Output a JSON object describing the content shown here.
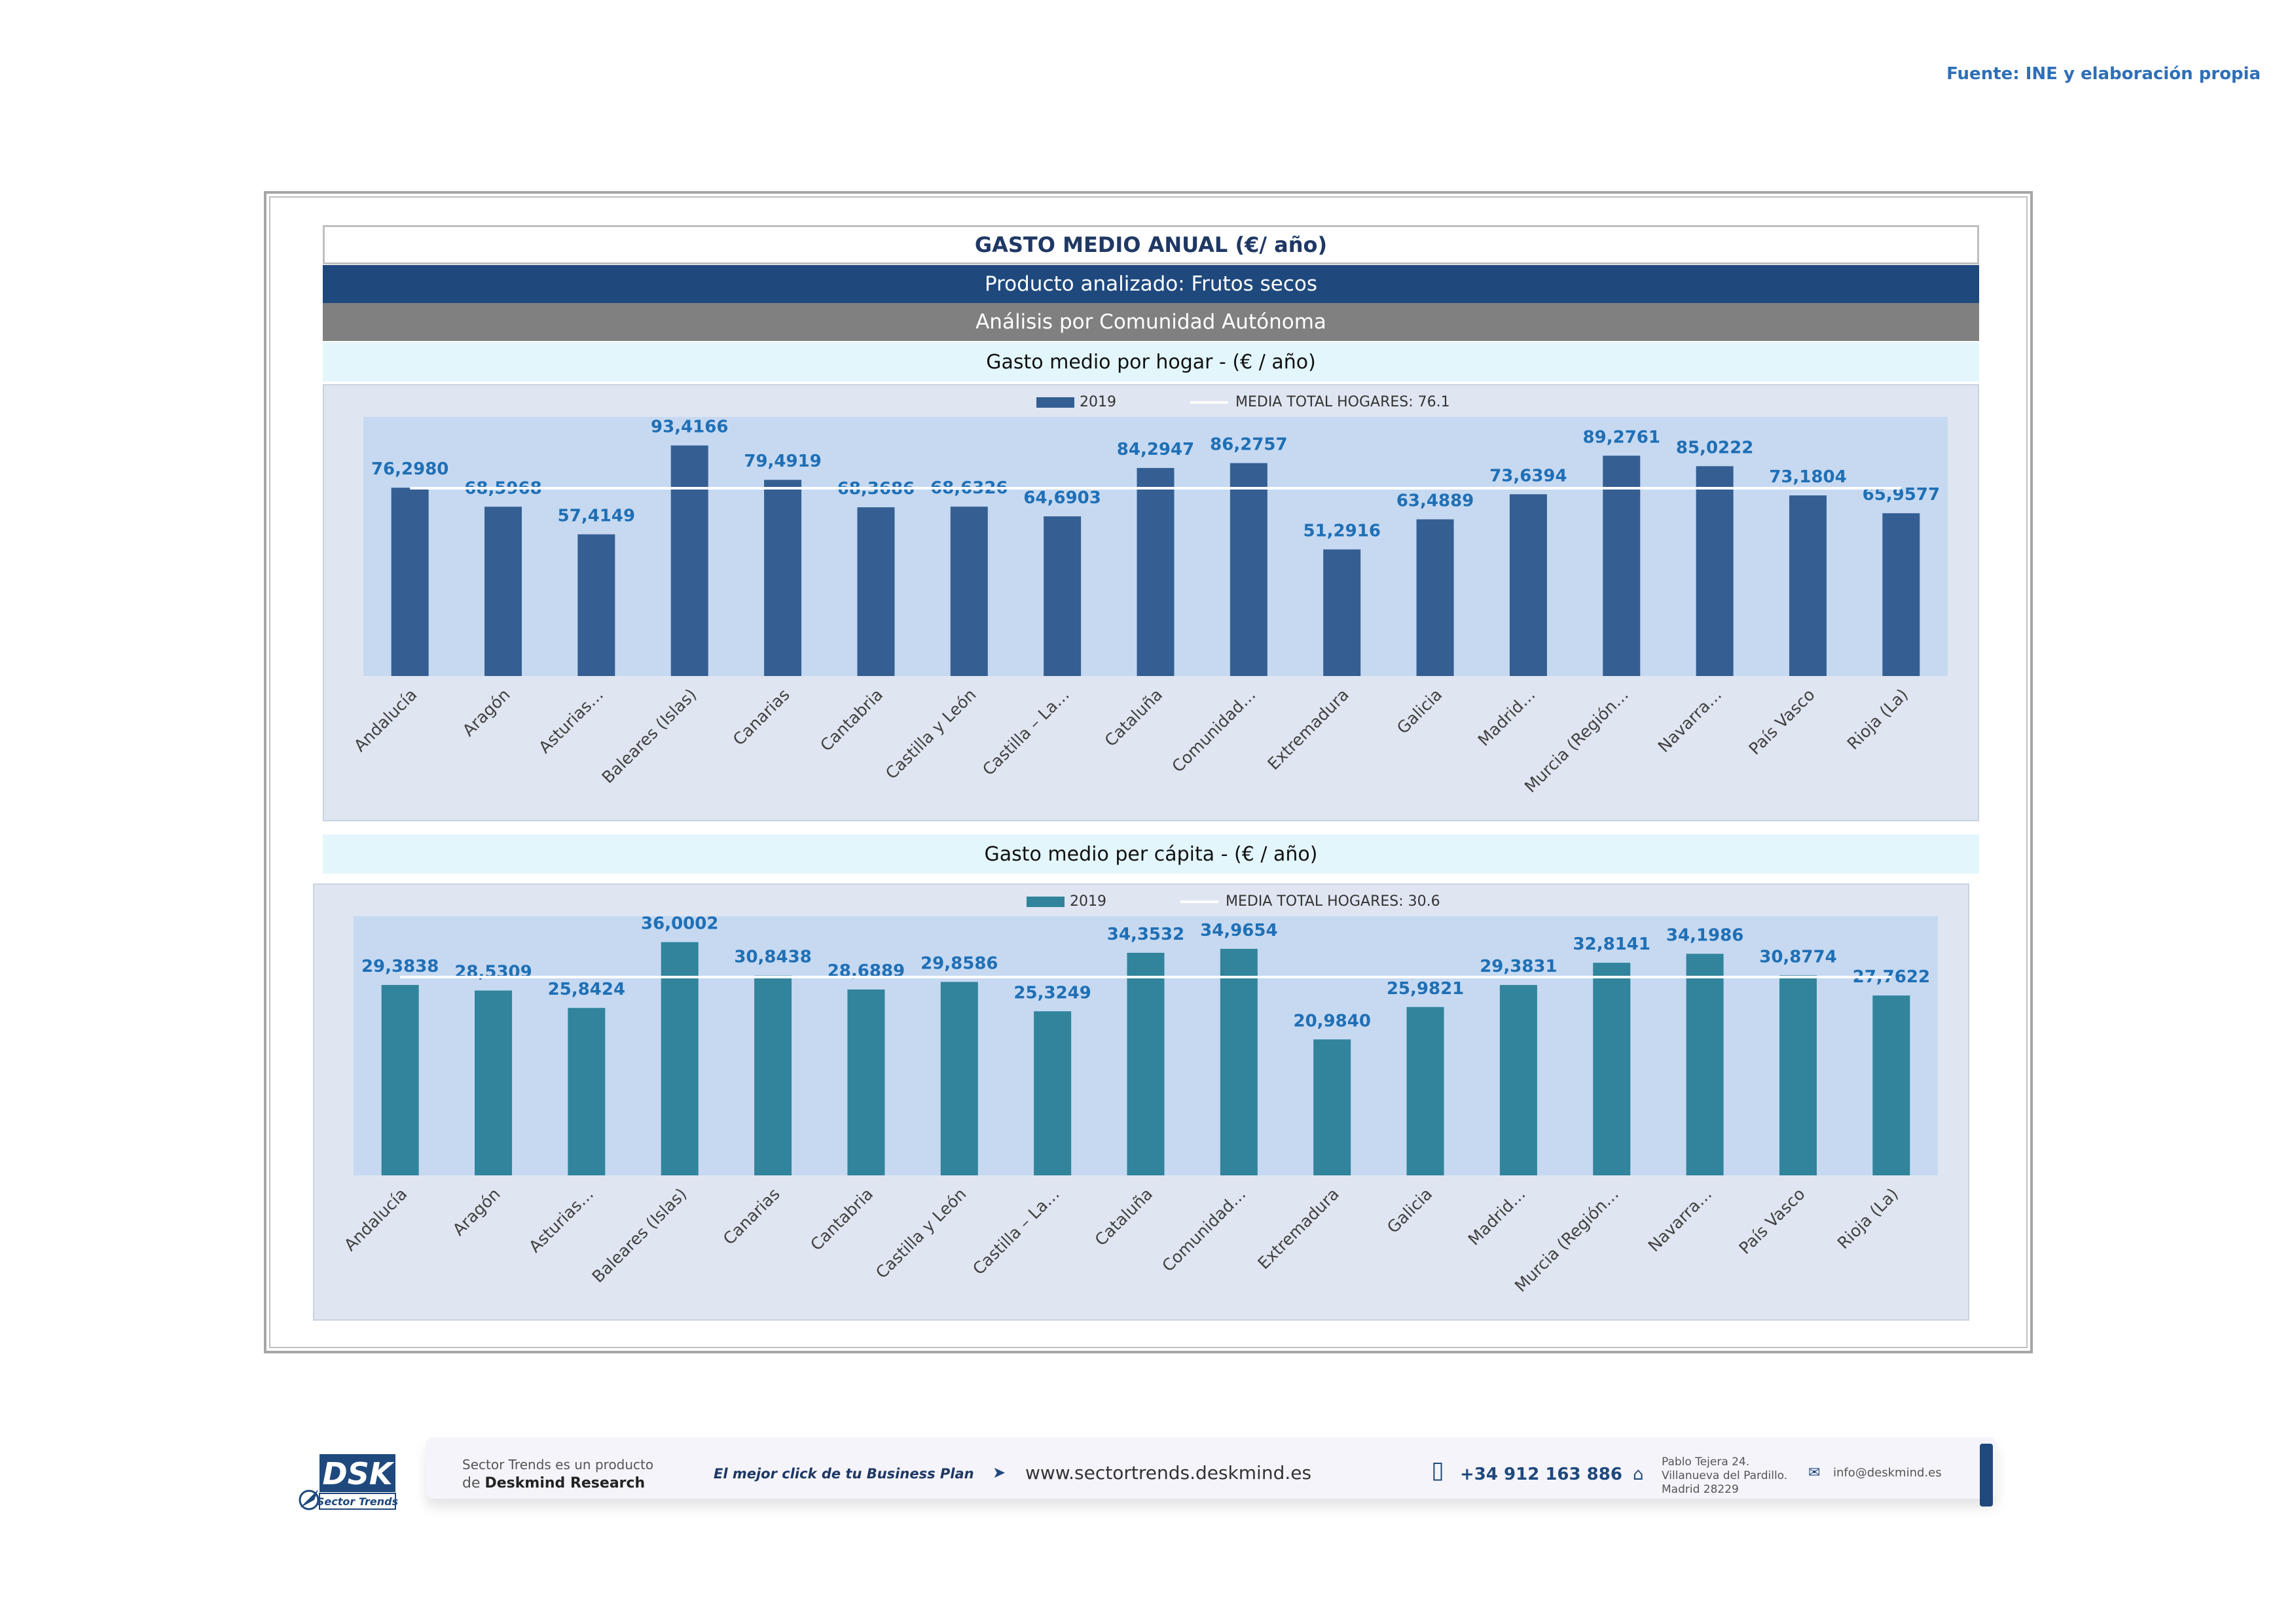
{
  "source": "Fuente: INE y elaboración propia",
  "header": {
    "title": "GASTO MEDIO ANUAL (€/ año)",
    "product": "Producto analizado: Frutos secos",
    "analysis": "Análisis por Comunidad Autónoma"
  },
  "colors": {
    "hogar_bar": "#355f93",
    "capita_bar": "#31849b",
    "plot_bg": "#c6d9f1",
    "panel_bg": "#dfe6f1",
    "label": "#1f6fb5",
    "mean_line": "#ffffff"
  },
  "chart_data": [
    {
      "type": "bar",
      "title": "Gasto medio por hogar -  (€ / año)",
      "categories": [
        "Andalucía",
        "Aragón",
        "Asturias…",
        "Baleares (Islas)",
        "Canarias",
        "Cantabria",
        "Castilla y León",
        "Castilla – La…",
        "Cataluña",
        "Comunidad…",
        "Extremadura",
        "Galicia",
        "Madrid…",
        "Murcia (Región…",
        "Navarra…",
        "País Vasco",
        "Rioja (La)"
      ],
      "series": [
        {
          "name": "2019",
          "values": [
            76.298,
            68.5968,
            57.4149,
            93.4166,
            79.4919,
            68.3686,
            68.6326,
            64.6903,
            84.2947,
            86.2757,
            51.2916,
            63.4889,
            73.6394,
            89.2761,
            85.0222,
            73.1804,
            65.9577
          ],
          "labels": [
            "76,2980",
            "68,5968",
            "57,4149",
            "93,4166",
            "79,4919",
            "68,3686",
            "68,6326",
            "64,6903",
            "84,2947",
            "86,2757",
            "51,2916",
            "63,4889",
            "73,6394",
            "89,2761",
            "85,0222",
            "73,1804",
            "65,9577"
          ]
        }
      ],
      "mean": {
        "label": "MEDIA TOTAL  HOGARES:",
        "value": 76.1,
        "display": "76.1"
      },
      "ylim": [
        0,
        105
      ],
      "legend": "top-center"
    },
    {
      "type": "bar",
      "title": "Gasto medio per cápita -  (€ / año)",
      "categories": [
        "Andalucía",
        "Aragón",
        "Asturias…",
        "Baleares (Islas)",
        "Canarias",
        "Cantabria",
        "Castilla y León",
        "Castilla – La…",
        "Cataluña",
        "Comunidad…",
        "Extremadura",
        "Galicia",
        "Madrid…",
        "Murcia (Región…",
        "Navarra…",
        "País Vasco",
        "Rioja (La)"
      ],
      "series": [
        {
          "name": "2019",
          "values": [
            29.3838,
            28.5309,
            25.8424,
            36.0002,
            30.8438,
            28.6889,
            29.8586,
            25.3249,
            34.3532,
            34.9654,
            20.984,
            25.9821,
            29.3831,
            32.8141,
            34.1986,
            30.8774,
            27.7622
          ],
          "labels": [
            "29,3838",
            "28,5309",
            "25,8424",
            "36,0002",
            "30,8438",
            "28,6889",
            "29,8586",
            "25,3249",
            "34,3532",
            "34,9654",
            "20,9840",
            "25,9821",
            "29,3831",
            "32,8141",
            "34,1986",
            "30,8774",
            "27,7622"
          ]
        }
      ],
      "mean": {
        "label": "MEDIA TOTAL  HOGARES:",
        "value": 30.6,
        "display": "30.6"
      },
      "ylim": [
        0,
        40
      ],
      "legend": "top-center"
    }
  ],
  "footer": {
    "logo_text": "DSK",
    "logo_sub": "Sector Trends",
    "product_line1": "Sector Trends es un producto",
    "product_line2_prefix": "de",
    "product_line2_brand": "Deskmind Research",
    "slogan": "El mejor click de tu Business Plan",
    "website": "www.sectortrends.deskmind.es",
    "phone": "+34 912 163 886",
    "address_line1": "Pablo Tejera 24.",
    "address_line2": "Villanueva del Pardillo.",
    "address_line3": "Madrid 28229",
    "email": "info@deskmind.es"
  }
}
